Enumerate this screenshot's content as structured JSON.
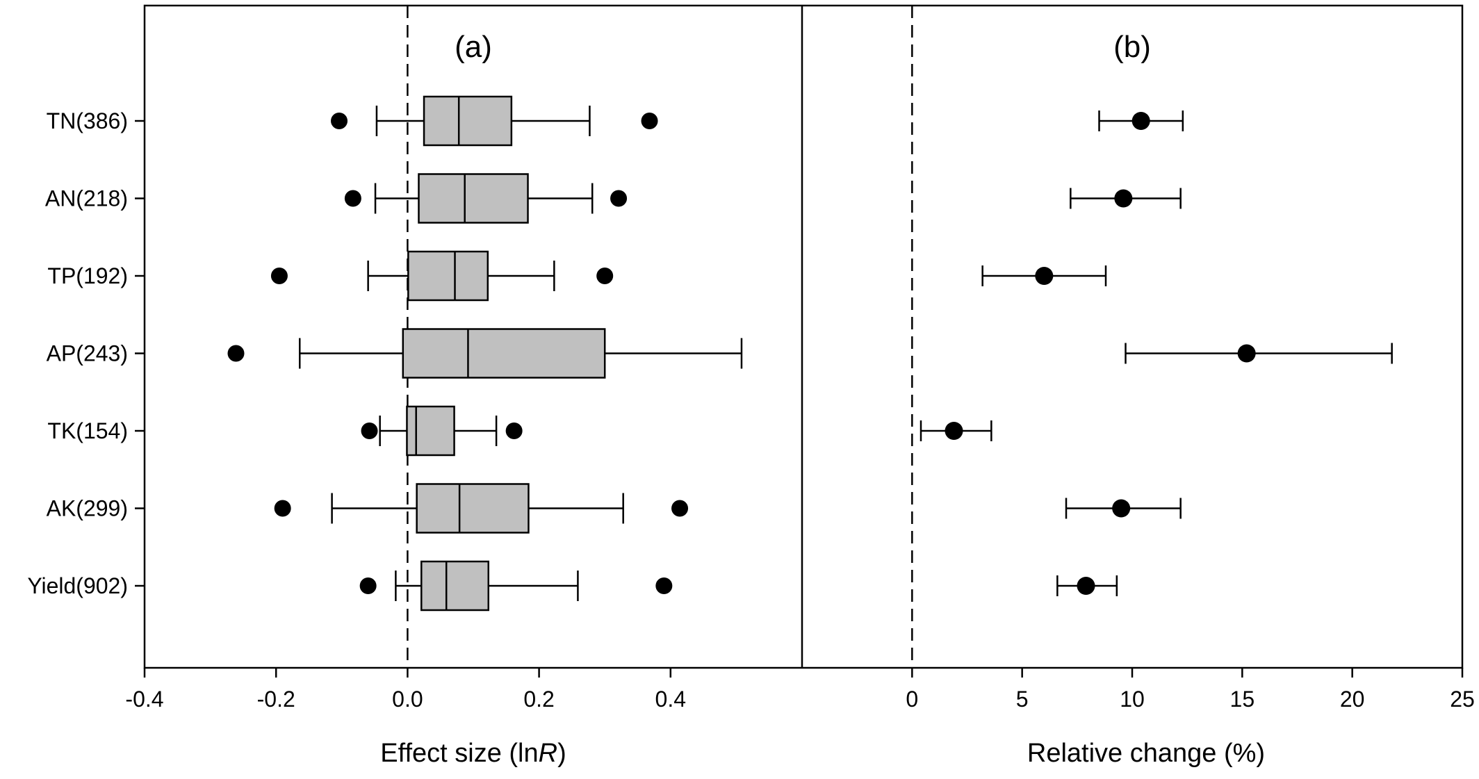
{
  "chart_data": [
    {
      "type": "boxplot",
      "panel_label": "(a)",
      "xlabel_main": "Effect size (ln",
      "xlabel_italic": "R",
      "xlabel_close": ")",
      "xlim": [
        -0.4,
        0.6
      ],
      "xticks": [
        -0.4,
        -0.2,
        0.0,
        0.2,
        0.4
      ],
      "xtick_labels": [
        "-0.4",
        "-0.2",
        "0.0",
        "0.2",
        "0.4"
      ],
      "reference_line": 0,
      "categories": [
        "TN(386)",
        "AN(218)",
        "TP(192)",
        "AP(243)",
        "TK(154)",
        "AK(299)",
        "Yield(902)"
      ],
      "boxes": [
        {
          "whisker_low": -0.047,
          "q1": 0.025,
          "median": 0.078,
          "q3": 0.158,
          "whisker_high": 0.277,
          "outliers": [
            -0.104,
            0.368
          ]
        },
        {
          "whisker_low": -0.049,
          "q1": 0.017,
          "median": 0.087,
          "q3": 0.183,
          "whisker_high": 0.281,
          "outliers": [
            -0.083,
            0.321
          ]
        },
        {
          "whisker_low": -0.06,
          "q1": 0.001,
          "median": 0.072,
          "q3": 0.122,
          "whisker_high": 0.223,
          "outliers": [
            -0.195,
            0.3
          ]
        },
        {
          "whisker_low": -0.164,
          "q1": -0.007,
          "median": 0.092,
          "q3": 0.3,
          "whisker_high": 0.508,
          "outliers": [
            -0.261
          ]
        },
        {
          "whisker_low": -0.042,
          "q1": -0.001,
          "median": 0.013,
          "q3": 0.071,
          "whisker_high": 0.135,
          "outliers": [
            -0.058,
            0.162
          ]
        },
        {
          "whisker_low": -0.115,
          "q1": 0.014,
          "median": 0.079,
          "q3": 0.184,
          "whisker_high": 0.328,
          "outliers": [
            -0.19,
            0.414
          ]
        },
        {
          "whisker_low": -0.018,
          "q1": 0.021,
          "median": 0.059,
          "q3": 0.123,
          "whisker_high": 0.259,
          "outliers": [
            -0.06,
            0.39
          ]
        }
      ]
    },
    {
      "type": "dot-errorbar",
      "panel_label": "(b)",
      "xlabel": "Relative change (%)",
      "xlim": [
        -5,
        25
      ],
      "xticks": [
        0,
        5,
        10,
        15,
        20,
        25
      ],
      "xtick_labels": [
        "0",
        "5",
        "10",
        "15",
        "20",
        "25"
      ],
      "reference_line": 0,
      "categories": [
        "TN(386)",
        "AN(218)",
        "TP(192)",
        "AP(243)",
        "TK(154)",
        "AK(299)",
        "Yield(902)"
      ],
      "points": [
        {
          "mean": 10.4,
          "low": 8.5,
          "high": 12.3
        },
        {
          "mean": 9.6,
          "low": 7.2,
          "high": 12.2
        },
        {
          "mean": 6.0,
          "low": 3.2,
          "high": 8.8
        },
        {
          "mean": 15.2,
          "low": 9.7,
          "high": 21.8
        },
        {
          "mean": 1.9,
          "low": 0.4,
          "high": 3.6
        },
        {
          "mean": 9.5,
          "low": 7.0,
          "high": 12.2
        },
        {
          "mean": 7.9,
          "low": 6.6,
          "high": 9.3
        }
      ]
    }
  ]
}
